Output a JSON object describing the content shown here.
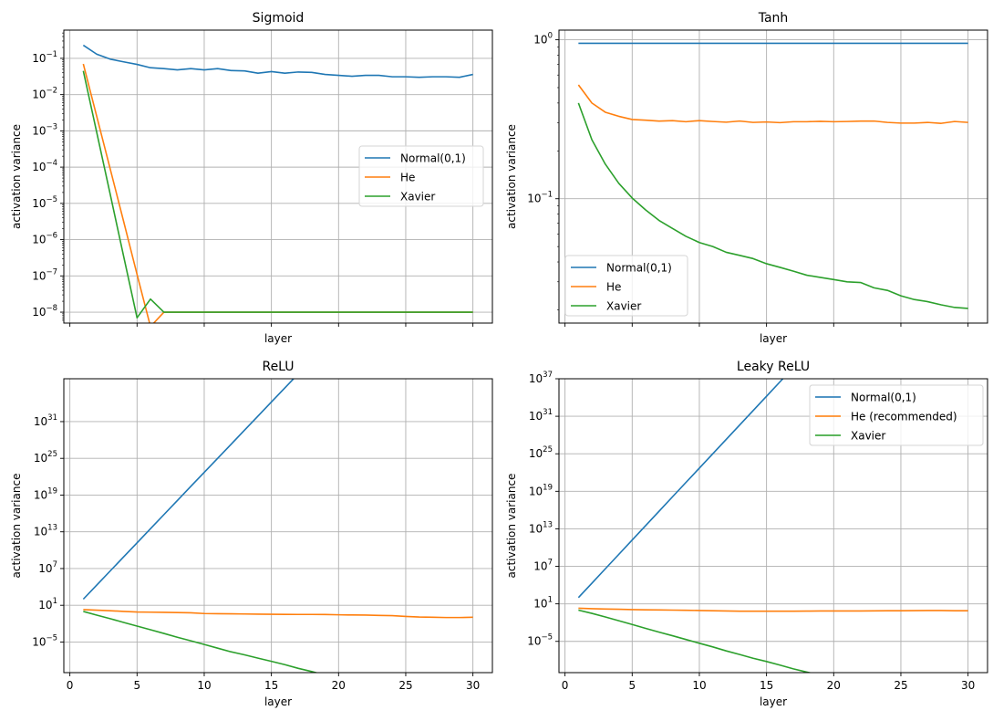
{
  "chart_data": [
    {
      "type": "line",
      "title": "Sigmoid",
      "xlabel": "layer",
      "ylabel": "activation variance",
      "yscale": "log",
      "ylim": [
        5e-09,
        0.6
      ],
      "xlim": [
        -0.45,
        31.45
      ],
      "grid": true,
      "show_xticklabels": false,
      "xticks": [
        0,
        5,
        10,
        15,
        20,
        25,
        30
      ],
      "yticks": [
        {
          "value": 1e-08,
          "exp": "−8"
        },
        {
          "value": 1e-07,
          "exp": "−7"
        },
        {
          "value": 1e-06,
          "exp": "−6"
        },
        {
          "value": 1e-05,
          "exp": "−5"
        },
        {
          "value": 0.0001,
          "exp": "−4"
        },
        {
          "value": 0.001,
          "exp": "−3"
        },
        {
          "value": 0.01,
          "exp": "−2"
        },
        {
          "value": 0.1,
          "exp": "−1"
        }
      ],
      "legend": {
        "placement": "center-right",
        "entries": [
          "Normal(0,1)",
          "He",
          "Xavier"
        ]
      },
      "x": [
        1,
        2,
        3,
        4,
        5,
        6,
        7,
        8,
        9,
        10,
        11,
        12,
        13,
        14,
        15,
        16,
        17,
        18,
        19,
        20,
        21,
        22,
        23,
        24,
        25,
        26,
        27,
        28,
        29,
        30
      ],
      "series": [
        {
          "name": "Normal(0,1)",
          "color": "#1f77b4",
          "values": [
            0.23,
            0.13,
            0.095,
            0.08,
            0.068,
            0.055,
            0.052,
            0.048,
            0.052,
            0.048,
            0.052,
            0.046,
            0.045,
            0.039,
            0.043,
            0.039,
            0.042,
            0.041,
            0.036,
            0.034,
            0.032,
            0.034,
            0.034,
            0.031,
            0.031,
            0.03,
            0.031,
            0.031,
            0.03,
            0.036
          ]
        },
        {
          "name": "He",
          "color": "#ff7f0e",
          "values": [
            0.07,
            0.0025,
            9e-05,
            3.2e-06,
            1.1e-07,
            4e-09,
            1e-08,
            1e-08,
            1e-08,
            1e-08,
            1e-08,
            1e-08,
            1e-08,
            1e-08,
            1e-08,
            1e-08,
            1e-08,
            1e-08,
            1e-08,
            1e-08,
            1e-08,
            1e-08,
            1e-08,
            1e-08,
            1e-08,
            1e-08,
            1e-08,
            1e-08,
            1e-08,
            1e-08
          ]
        },
        {
          "name": "Xavier",
          "color": "#2ca02c",
          "values": [
            0.045,
            0.0009,
            1.8e-05,
            3.5e-07,
            7e-09,
            2.3e-08,
            1e-08,
            1e-08,
            1e-08,
            1e-08,
            1e-08,
            1e-08,
            1e-08,
            1e-08,
            1e-08,
            1e-08,
            1e-08,
            1e-08,
            1e-08,
            1e-08,
            1e-08,
            1e-08,
            1e-08,
            1e-08,
            1e-08,
            1e-08,
            1e-08,
            1e-08,
            1e-08,
            1e-08
          ]
        }
      ]
    },
    {
      "type": "line",
      "title": "Tanh",
      "xlabel": "layer",
      "ylabel": "activation variance",
      "yscale": "log",
      "ylim": [
        0.0165,
        1.15
      ],
      "xlim": [
        -0.45,
        31.45
      ],
      "grid": true,
      "show_xticklabels": false,
      "xticks": [
        0,
        5,
        10,
        15,
        20,
        25,
        30
      ],
      "yticks": [
        {
          "value": 0.1,
          "exp": "−1"
        },
        {
          "value": 1,
          "exp": "0"
        }
      ],
      "legend": {
        "placement": "lower-left",
        "entries": [
          "Normal(0,1)",
          "He",
          "Xavier"
        ]
      },
      "x": [
        1,
        2,
        3,
        4,
        5,
        6,
        7,
        8,
        9,
        10,
        11,
        12,
        13,
        14,
        15,
        16,
        17,
        18,
        19,
        20,
        21,
        22,
        23,
        24,
        25,
        26,
        27,
        28,
        29,
        30
      ],
      "series": [
        {
          "name": "Normal(0,1)",
          "color": "#1f77b4",
          "values": [
            0.95,
            0.95,
            0.95,
            0.95,
            0.95,
            0.95,
            0.95,
            0.95,
            0.95,
            0.95,
            0.95,
            0.95,
            0.95,
            0.95,
            0.95,
            0.95,
            0.95,
            0.95,
            0.95,
            0.95,
            0.95,
            0.95,
            0.95,
            0.95,
            0.95,
            0.95,
            0.95,
            0.95,
            0.95,
            0.95
          ]
        },
        {
          "name": "He",
          "color": "#ff7f0e",
          "values": [
            0.52,
            0.4,
            0.35,
            0.33,
            0.315,
            0.312,
            0.308,
            0.31,
            0.305,
            0.31,
            0.306,
            0.303,
            0.308,
            0.302,
            0.304,
            0.301,
            0.305,
            0.305,
            0.307,
            0.305,
            0.306,
            0.308,
            0.308,
            0.302,
            0.299,
            0.299,
            0.302,
            0.298,
            0.306,
            0.302
          ]
        },
        {
          "name": "Xavier",
          "color": "#2ca02c",
          "values": [
            0.4,
            0.235,
            0.165,
            0.125,
            0.101,
            0.085,
            0.073,
            0.065,
            0.058,
            0.053,
            0.05,
            0.046,
            0.044,
            0.042,
            0.039,
            0.037,
            0.035,
            0.033,
            0.032,
            0.031,
            0.03,
            0.0297,
            0.0275,
            0.0265,
            0.0245,
            0.0232,
            0.0225,
            0.0215,
            0.0207,
            0.0204
          ]
        }
      ]
    },
    {
      "type": "line",
      "title": "ReLU",
      "xlabel": "layer",
      "ylabel": "activation variance",
      "yscale": "log",
      "ylim": [
        1e-10,
        1e+38
      ],
      "xlim": [
        -0.45,
        31.45
      ],
      "grid": true,
      "show_xticklabels": true,
      "xticks": [
        0,
        5,
        10,
        15,
        20,
        25,
        30
      ],
      "yticks": [
        {
          "value": 1e-05,
          "exp": "−5"
        },
        {
          "value": 10,
          "exp": "1"
        },
        {
          "value": 10000000.0,
          "exp": "7"
        },
        {
          "value": 10000000000000.0,
          "exp": "13"
        },
        {
          "value": 1e+19,
          "exp": "19"
        },
        {
          "value": 1e+25,
          "exp": "25"
        },
        {
          "value": 1e+31,
          "exp": "31"
        }
      ],
      "legend": {
        "placement": "upper-right",
        "entries": [
          "Normal(0,1)",
          "He (recommended)",
          "Xavier"
        ]
      },
      "x": [
        1,
        2,
        3,
        4,
        5,
        6,
        7,
        8,
        9,
        10,
        11,
        12,
        13,
        14,
        15,
        16,
        17,
        18,
        19,
        20,
        21,
        22,
        23,
        24,
        25,
        26,
        27,
        28,
        29,
        30
      ],
      "series": [
        {
          "name": "Normal(0,1)",
          "color": "#1f77b4",
          "values": [
            100,
            20000.0,
            4000000.0,
            800000000.0,
            160000000000.0,
            32000000000000.0,
            6400000000000000.0,
            1.3e+18,
            2.6e+20,
            5.1e+22,
            1e+25,
            2e+27,
            4e+29,
            8e+31,
            1.6e+34,
            3.2e+36,
            6.4e+38
          ]
        },
        {
          "name": "He (recommended)",
          "color": "#ff7f0e",
          "values": [
            2.0,
            1.6,
            1.3,
            1.0,
            0.8,
            0.75,
            0.7,
            0.65,
            0.6,
            0.45,
            0.42,
            0.4,
            0.38,
            0.36,
            0.34,
            0.33,
            0.32,
            0.32,
            0.31,
            0.28,
            0.26,
            0.25,
            0.22,
            0.2,
            0.15,
            0.12,
            0.11,
            0.1,
            0.1,
            0.11
          ]
        },
        {
          "name": "Xavier",
          "color": "#2ca02c",
          "values": [
            1.0,
            0.25,
            0.065,
            0.016,
            0.004,
            0.001,
            0.00025,
            6e-05,
            1.6e-05,
            4e-06,
            1e-06,
            2.5e-07,
            8e-08,
            2.3e-08,
            7e-09,
            2e-09,
            5e-10,
            1.5e-10,
            4e-11,
            1.2e-11,
            1e-11,
            1e-11,
            1e-11,
            1e-11,
            1e-11,
            1e-11,
            1e-11,
            1e-11,
            1e-11,
            1e-11
          ]
        }
      ]
    },
    {
      "type": "line",
      "title": "Leaky ReLU",
      "xlabel": "layer",
      "ylabel": "activation variance",
      "yscale": "log",
      "ylim": [
        1e-10,
        1e+37
      ],
      "xlim": [
        -0.45,
        31.45
      ],
      "grid": true,
      "show_xticklabels": true,
      "xticks": [
        0,
        5,
        10,
        15,
        20,
        25,
        30
      ],
      "yticks": [
        {
          "value": 1e-05,
          "exp": "−5"
        },
        {
          "value": 10,
          "exp": "1"
        },
        {
          "value": 10000000.0,
          "exp": "7"
        },
        {
          "value": 10000000000000.0,
          "exp": "13"
        },
        {
          "value": 1e+19,
          "exp": "19"
        },
        {
          "value": 1e+25,
          "exp": "25"
        },
        {
          "value": 1e+31,
          "exp": "31"
        },
        {
          "value": 1e+37,
          "exp": "37"
        }
      ],
      "legend": {
        "placement": "upper-right",
        "entries": [
          "Normal(0,1)",
          "He (recommended)",
          "Xavier"
        ]
      },
      "x": [
        1,
        2,
        3,
        4,
        5,
        6,
        7,
        8,
        9,
        10,
        11,
        12,
        13,
        14,
        15,
        16,
        17,
        18,
        19,
        20,
        21,
        22,
        23,
        24,
        25,
        26,
        27,
        28,
        29,
        30
      ],
      "series": [
        {
          "name": "Normal(0,1)",
          "color": "#1f77b4",
          "values": [
            100,
            20000.0,
            4000000.0,
            800000000.0,
            160000000000.0,
            32000000000000.0,
            6400000000000000.0,
            1.3e+18,
            2.6e+20,
            5.1e+22,
            1e+25,
            2e+27,
            4e+29,
            8e+31,
            1.6e+34,
            3.2e+36,
            6.4e+38
          ]
        },
        {
          "name": "He (recommended)",
          "color": "#ff7f0e",
          "values": [
            2.0,
            1.7,
            1.5,
            1.35,
            1.2,
            1.1,
            1.05,
            1.0,
            0.95,
            0.85,
            0.8,
            0.72,
            0.68,
            0.66,
            0.66,
            0.66,
            0.68,
            0.7,
            0.72,
            0.72,
            0.72,
            0.74,
            0.76,
            0.78,
            0.8,
            0.82,
            0.85,
            0.85,
            0.8,
            0.78
          ]
        },
        {
          "name": "Xavier",
          "color": "#2ca02c",
          "values": [
            1.0,
            0.3,
            0.08,
            0.02,
            0.005,
            0.0012,
            0.0003,
            8e-05,
            2e-05,
            5e-06,
            1.3e-06,
            3e-07,
            8e-08,
            2e-08,
            6e-09,
            1.6e-09,
            4e-10,
            1.2e-10,
            4e-11,
            1.5e-11,
            1e-11,
            1e-11,
            1e-11,
            1e-11,
            1e-11,
            1e-11,
            1e-11,
            1e-11,
            1e-11,
            1e-11
          ]
        }
      ]
    }
  ]
}
